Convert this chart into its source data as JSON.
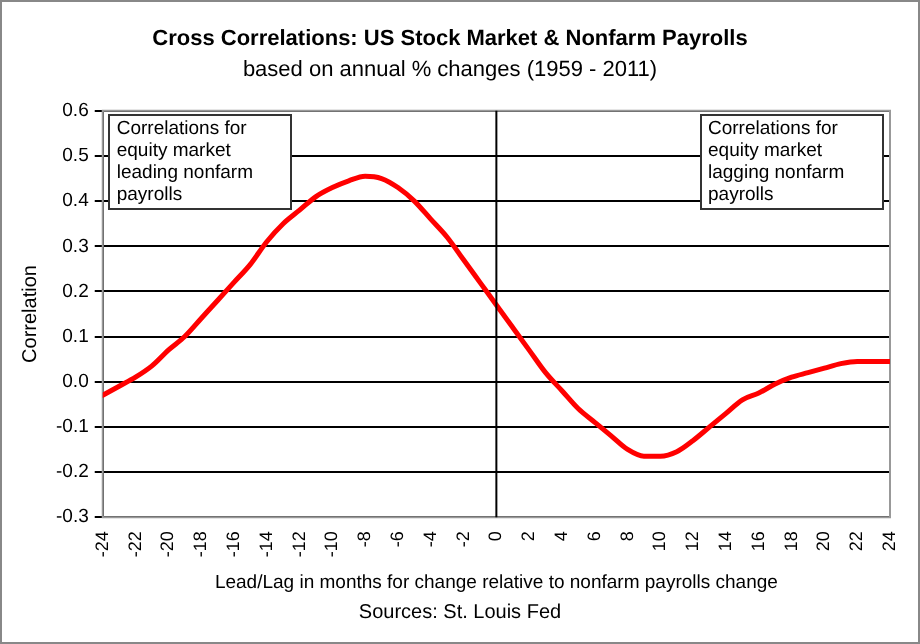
{
  "chart_data": {
    "type": "line",
    "title": "Cross Correlations: US Stock Market & Nonfarm Payrolls",
    "subtitle": "based on annual % changes (1959 - 2011)",
    "xlabel": "Lead/Lag in months for change relative to nonfarm payrolls change",
    "ylabel": "Correlation",
    "x": [
      -24,
      -23,
      -22,
      -21,
      -20,
      -19,
      -18,
      -17,
      -16,
      -15,
      -14,
      -13,
      -12,
      -11,
      -10,
      -9,
      -8,
      -7,
      -6,
      -5,
      -4,
      -3,
      -2,
      -1,
      0,
      1,
      2,
      3,
      4,
      5,
      6,
      7,
      8,
      9,
      10,
      11,
      12,
      13,
      14,
      15,
      16,
      17,
      18,
      19,
      20,
      21,
      22,
      23,
      24
    ],
    "series": [
      {
        "color": "#ff0000",
        "values": [
          -0.03,
          -0.01,
          0.01,
          0.035,
          0.07,
          0.1,
          0.14,
          0.18,
          0.22,
          0.26,
          0.31,
          0.35,
          0.38,
          0.41,
          0.43,
          0.445,
          0.455,
          0.45,
          0.43,
          0.4,
          0.36,
          0.32,
          0.27,
          0.22,
          0.17,
          0.12,
          0.07,
          0.02,
          -0.02,
          -0.06,
          -0.09,
          -0.12,
          -0.15,
          -0.165,
          -0.165,
          -0.155,
          -0.13,
          -0.1,
          -0.07,
          -0.04,
          -0.025,
          -0.005,
          0.01,
          0.02,
          0.03,
          0.04,
          0.045,
          0.045,
          0.045
        ]
      }
    ],
    "xlim": [
      -24,
      24
    ],
    "xticks": [
      -24,
      -22,
      -20,
      -18,
      -16,
      -14,
      -12,
      -10,
      -8,
      -6,
      -4,
      -2,
      0,
      2,
      4,
      6,
      8,
      10,
      12,
      14,
      16,
      18,
      20,
      22,
      24
    ],
    "ylim": [
      -0.3,
      0.6
    ],
    "yticks": [
      {
        "value": -0.3,
        "label": "-0.3"
      },
      {
        "value": -0.2,
        "label": "-0.2"
      },
      {
        "value": -0.1,
        "label": "-0.1"
      },
      {
        "value": 0,
        "label": "0.0"
      },
      {
        "value": 0.1,
        "label": "0.1"
      },
      {
        "value": 0.2,
        "label": "0.2"
      },
      {
        "value": 0.3,
        "label": "0.3"
      },
      {
        "value": 0.4,
        "label": "0.4"
      },
      {
        "value": 0.5,
        "label": "0.5"
      },
      {
        "value": 0.6,
        "label": "0.6"
      }
    ],
    "ref_lines": [
      {
        "axis": "x",
        "value": 0,
        "color": "#000000"
      }
    ],
    "annotations": [
      "Correlations for equity market leading nonfarm payrolls",
      "Correlations for equity market lagging nonfarm payrolls",
      "Sources: St. Louis Fed"
    ],
    "grid": "y",
    "legend": false,
    "marker": "none",
    "line_style": "solid"
  }
}
